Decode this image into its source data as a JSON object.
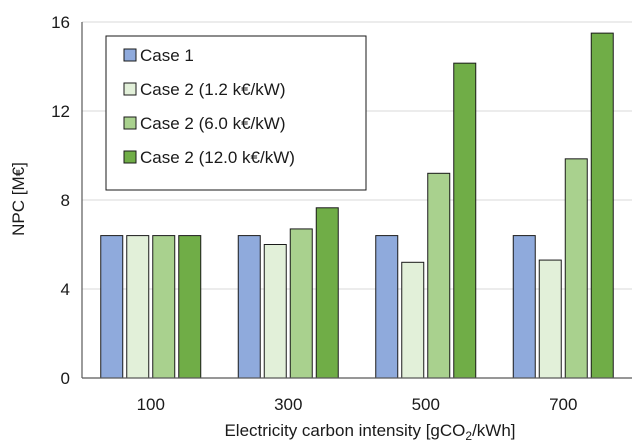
{
  "chart_data": {
    "type": "bar",
    "categories": [
      "100",
      "300",
      "500",
      "700"
    ],
    "series": [
      {
        "name": "Case 1",
        "color": "#8faadc",
        "values": [
          6.4,
          6.4,
          6.4,
          6.4
        ]
      },
      {
        "name": "Case 2 (1.2 k€/kW)",
        "color": "#e2f0d9",
        "values": [
          6.4,
          6.0,
          5.2,
          5.3
        ]
      },
      {
        "name": "Case 2 (6.0 k€/kW)",
        "color": "#a9d18e",
        "values": [
          6.4,
          6.7,
          9.2,
          9.85
        ]
      },
      {
        "name": "Case 2 (12.0 k€/kW)",
        "color": "#70ad47",
        "values": [
          6.4,
          7.65,
          14.15,
          15.5
        ]
      }
    ],
    "yticks": [
      "0",
      "4",
      "8",
      "12",
      "16"
    ],
    "ylim": [
      0,
      16
    ],
    "ylabel": "NPC [M€]",
    "xlabel": "Electricity carbon intensity [gCO2/kWh]",
    "xlabel_parts": {
      "pre": "Electricity carbon intensity [gCO",
      "sub": "2",
      "post": "/kWh]"
    },
    "grid": true,
    "legend_position": "top-left",
    "colors": {
      "grid": "#d9d9d9",
      "axis": "#595959",
      "bar_edge": "#1a1a1a"
    }
  }
}
